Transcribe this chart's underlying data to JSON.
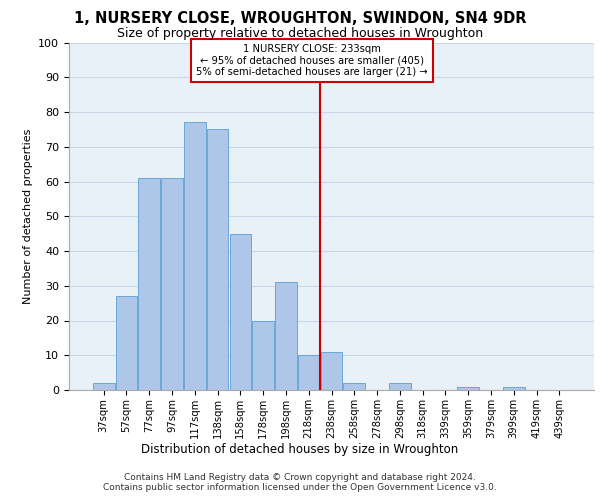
{
  "title_line1": "1, NURSERY CLOSE, WROUGHTON, SWINDON, SN4 9DR",
  "title_line2": "Size of property relative to detached houses in Wroughton",
  "xlabel": "Distribution of detached houses by size in Wroughton",
  "ylabel": "Number of detached properties",
  "bar_labels": [
    "37sqm",
    "57sqm",
    "77sqm",
    "97sqm",
    "117sqm",
    "138sqm",
    "158sqm",
    "178sqm",
    "198sqm",
    "218sqm",
    "238sqm",
    "258sqm",
    "278sqm",
    "298sqm",
    "318sqm",
    "339sqm",
    "359sqm",
    "379sqm",
    "399sqm",
    "419sqm",
    "439sqm"
  ],
  "bar_heights": [
    2,
    27,
    61,
    61,
    77,
    75,
    45,
    20,
    31,
    10,
    11,
    2,
    0,
    2,
    0,
    0,
    1,
    0,
    1,
    0,
    0
  ],
  "bar_color": "#aec6e8",
  "bar_edge_color": "#5a9fd4",
  "reference_line_x": 9.5,
  "reference_line_label": "1 NURSERY CLOSE: 233sqm",
  "annotation_line1": "← 95% of detached houses are smaller (405)",
  "annotation_line2": "5% of semi-detached houses are larger (21) →",
  "annotation_box_color": "#cc0000",
  "ylim": [
    0,
    100
  ],
  "yticks": [
    0,
    10,
    20,
    30,
    40,
    50,
    60,
    70,
    80,
    90,
    100
  ],
  "grid_color": "#c8d8e8",
  "bg_color": "#e8f0f8",
  "footer_line1": "Contains HM Land Registry data © Crown copyright and database right 2024.",
  "footer_line2": "Contains public sector information licensed under the Open Government Licence v3.0."
}
